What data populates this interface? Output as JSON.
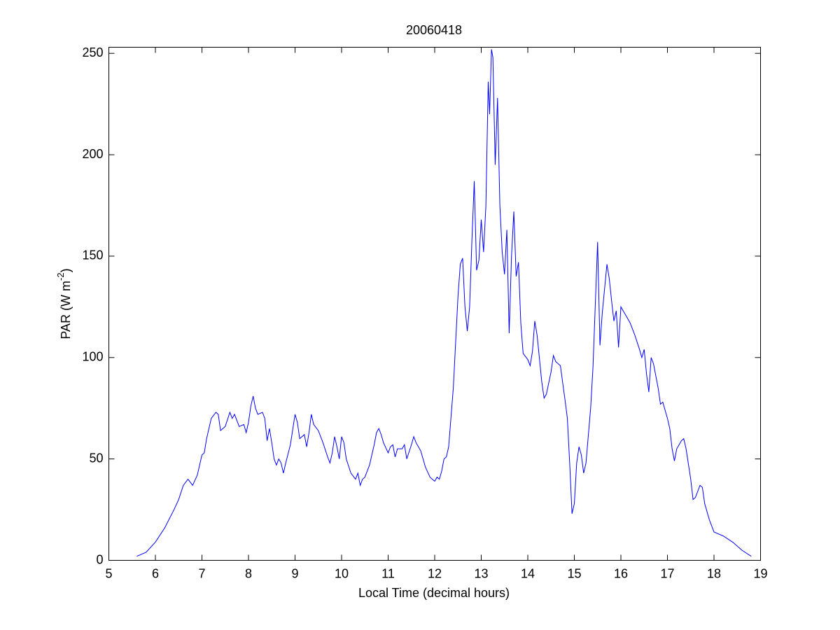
{
  "chart_data": {
    "type": "line",
    "title": "20060418",
    "x_label": "Local Time (decimal hours)",
    "y_label": [
      "PAR (W m",
      "-2",
      ")"
    ],
    "xlim": [
      5,
      19
    ],
    "ylim": [
      0,
      253
    ],
    "xticks": [
      5,
      6,
      7,
      8,
      9,
      10,
      11,
      12,
      13,
      14,
      15,
      16,
      17,
      18,
      19
    ],
    "yticks": [
      0,
      50,
      100,
      150,
      200,
      250
    ],
    "grid": false,
    "x": [
      5.6,
      5.8,
      6.0,
      6.2,
      6.4,
      6.5,
      6.6,
      6.7,
      6.8,
      6.9,
      7.0,
      7.05,
      7.1,
      7.2,
      7.3,
      7.35,
      7.4,
      7.5,
      7.6,
      7.65,
      7.7,
      7.8,
      7.9,
      7.95,
      8.0,
      8.05,
      8.1,
      8.15,
      8.2,
      8.3,
      8.35,
      8.4,
      8.45,
      8.5,
      8.55,
      8.6,
      8.65,
      8.7,
      8.75,
      8.8,
      8.9,
      9.0,
      9.05,
      9.1,
      9.2,
      9.25,
      9.3,
      9.35,
      9.4,
      9.5,
      9.6,
      9.7,
      9.75,
      9.8,
      9.85,
      9.9,
      9.95,
      10.0,
      10.05,
      10.1,
      10.2,
      10.3,
      10.35,
      10.4,
      10.45,
      10.5,
      10.6,
      10.7,
      10.75,
      10.8,
      10.85,
      10.9,
      11.0,
      11.05,
      11.1,
      11.15,
      11.2,
      11.3,
      11.35,
      11.4,
      11.5,
      11.55,
      11.6,
      11.7,
      11.8,
      11.9,
      12.0,
      12.05,
      12.1,
      12.15,
      12.2,
      12.25,
      12.3,
      12.4,
      12.5,
      12.55,
      12.6,
      12.65,
      12.7,
      12.75,
      12.8,
      12.85,
      12.9,
      12.95,
      13.0,
      13.05,
      13.1,
      13.15,
      13.18,
      13.22,
      13.25,
      13.3,
      13.35,
      13.4,
      13.45,
      13.5,
      13.55,
      13.6,
      13.65,
      13.7,
      13.75,
      13.8,
      13.85,
      13.9,
      14.0,
      14.05,
      14.1,
      14.15,
      14.2,
      14.3,
      14.35,
      14.4,
      14.5,
      14.55,
      14.6,
      14.7,
      14.8,
      14.85,
      14.9,
      14.95,
      15.0,
      15.05,
      15.1,
      15.15,
      15.2,
      15.25,
      15.35,
      15.4,
      15.5,
      15.55,
      15.6,
      15.7,
      15.75,
      15.8,
      15.85,
      15.9,
      15.95,
      16.0,
      16.1,
      16.2,
      16.3,
      16.4,
      16.45,
      16.5,
      16.55,
      16.6,
      16.65,
      16.7,
      16.8,
      16.85,
      16.9,
      17.0,
      17.05,
      17.1,
      17.15,
      17.2,
      17.3,
      17.35,
      17.4,
      17.5,
      17.55,
      17.6,
      17.7,
      17.75,
      17.8,
      17.9,
      18.0,
      18.2,
      18.4,
      18.6,
      18.8
    ],
    "series": [
      {
        "name": "PAR",
        "color": "#0000ff",
        "values": [
          2,
          4,
          9,
          16,
          25,
          30,
          37,
          40,
          37,
          42,
          52,
          53,
          60,
          70,
          73,
          72,
          64,
          66,
          73,
          70,
          72,
          66,
          67,
          63,
          68,
          76,
          81,
          75,
          72,
          73,
          70,
          59,
          65,
          58,
          50,
          47,
          50,
          48,
          43,
          48,
          57,
          72,
          68,
          60,
          62,
          56,
          63,
          72,
          67,
          64,
          58,
          51,
          48,
          53,
          61,
          56,
          50,
          61,
          58,
          50,
          43,
          40,
          43,
          37,
          40,
          41,
          47,
          57,
          63,
          65,
          62,
          58,
          53,
          56,
          57,
          51,
          55,
          55,
          57,
          50,
          57,
          61,
          58,
          54,
          46,
          41,
          39,
          41,
          40,
          44,
          50,
          51,
          56,
          85,
          130,
          146,
          149,
          125,
          113,
          125,
          158,
          187,
          143,
          148,
          168,
          152,
          175,
          236,
          220,
          252,
          248,
          195,
          228,
          175,
          152,
          141,
          163,
          112,
          150,
          172,
          140,
          147,
          117,
          102,
          99,
          96,
          103,
          118,
          111,
          88,
          80,
          82,
          93,
          101,
          98,
          96,
          79,
          70,
          48,
          23,
          28,
          48,
          56,
          52,
          43,
          48,
          75,
          95,
          157,
          106,
          122,
          146,
          139,
          128,
          118,
          123,
          105,
          125,
          121,
          117,
          111,
          104,
          100,
          104,
          92,
          83,
          100,
          97,
          85,
          77,
          78,
          70,
          65,
          55,
          49,
          55,
          59,
          60,
          55,
          40,
          30,
          31,
          37,
          36,
          28,
          20,
          14,
          12,
          9,
          5,
          2
        ]
      }
    ]
  }
}
